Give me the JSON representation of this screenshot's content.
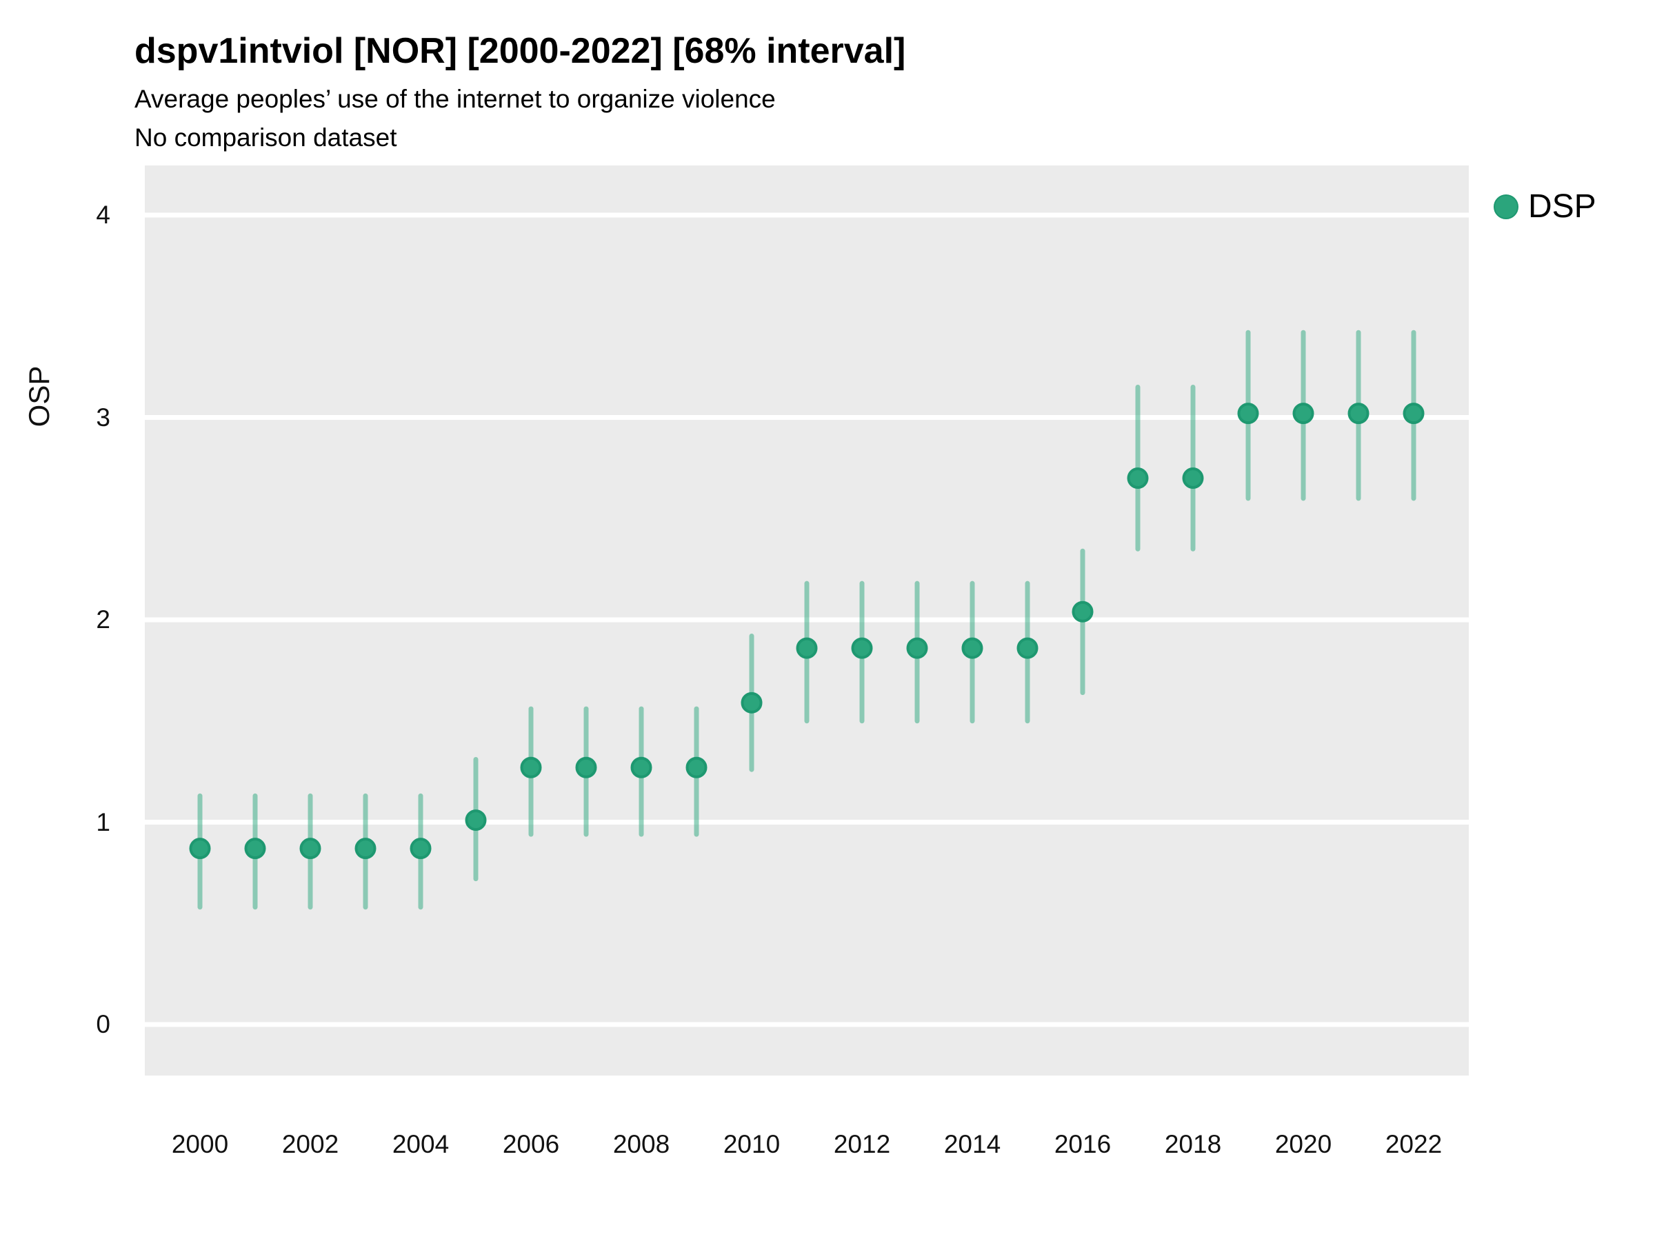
{
  "header": {
    "title": "dspv1intviol [NOR] [2000-2022] [68% interval]",
    "subtitle1": "Average peoples’ use of the internet to organize violence",
    "subtitle2": "No comparison dataset"
  },
  "legend": {
    "label": "DSP",
    "position": "right-top"
  },
  "colors": {
    "point_fill": "#2BA57C",
    "point_border": "#1E9870",
    "interval_bar": "rgba(44,167,125,0.5)",
    "panel_background": "#EBEBEB",
    "gridline": "#FFFFFF",
    "text": "#111111"
  },
  "chart_data": {
    "type": "scatter",
    "title": "dspv1intviol [NOR] [2000-2022] [68% interval]",
    "subtitle": [
      "Average peoples’ use of the internet to organize violence",
      "No comparison dataset"
    ],
    "xlabel": "",
    "ylabel": "OSP",
    "interval_label": "68% interval",
    "grid": "major-horizontal-white",
    "legend_position": "right-top",
    "x": [
      2000,
      2001,
      2002,
      2003,
      2004,
      2005,
      2006,
      2007,
      2008,
      2009,
      2010,
      2011,
      2012,
      2013,
      2014,
      2015,
      2016,
      2017,
      2018,
      2019,
      2020,
      2021,
      2022
    ],
    "xticks": [
      2000,
      2002,
      2004,
      2006,
      2008,
      2010,
      2012,
      2014,
      2016,
      2018,
      2020,
      2022
    ],
    "yticks": [
      0,
      1,
      2,
      3,
      4
    ],
    "xlim": [
      1999,
      2023
    ],
    "ylim": [
      -0.25,
      4.25
    ],
    "series": [
      {
        "name": "DSP",
        "points": [
          0.87,
          0.87,
          0.87,
          0.87,
          0.87,
          1.01,
          1.27,
          1.27,
          1.27,
          1.27,
          1.59,
          1.86,
          1.86,
          1.86,
          1.86,
          1.86,
          2.04,
          2.7,
          2.7,
          3.02,
          3.02,
          3.02,
          3.02
        ],
        "lower": [
          0.58,
          0.58,
          0.58,
          0.58,
          0.58,
          0.72,
          0.94,
          0.94,
          0.94,
          0.94,
          1.26,
          1.5,
          1.5,
          1.5,
          1.5,
          1.5,
          1.64,
          2.35,
          2.35,
          2.6,
          2.6,
          2.6,
          2.6
        ],
        "upper": [
          1.13,
          1.13,
          1.13,
          1.13,
          1.13,
          1.31,
          1.56,
          1.56,
          1.56,
          1.56,
          1.92,
          2.18,
          2.18,
          2.18,
          2.18,
          2.18,
          2.34,
          3.15,
          3.15,
          3.42,
          3.42,
          3.42,
          3.42
        ]
      }
    ]
  }
}
